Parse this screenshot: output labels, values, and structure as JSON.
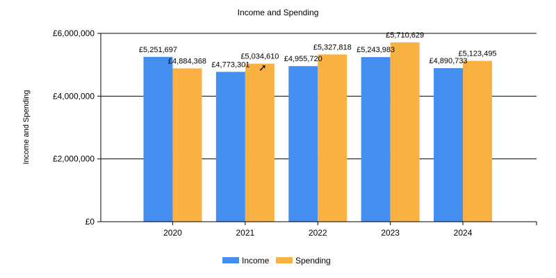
{
  "chart_data": {
    "type": "bar",
    "title": "Income and Spending",
    "xlabel": "",
    "ylabel": "Income and Spending",
    "categories": [
      "2020",
      "2021",
      "2022",
      "2023",
      "2024"
    ],
    "series": [
      {
        "name": "Income",
        "color": "#448EF0",
        "values": [
          5251697,
          4773301,
          4955720,
          5243983,
          4890733
        ],
        "labels": [
          "£5,251,697",
          "£4,773,301",
          "£4,955,720",
          "£5,243,983",
          "£4,890,733"
        ]
      },
      {
        "name": "Spending",
        "color": "#F9B241",
        "values": [
          4884368,
          5034610,
          5327818,
          5710629,
          5123495
        ],
        "labels": [
          "£4,884,368",
          "£5,034,610",
          "£5,327,818",
          "£5,710,629",
          "£5,123,495"
        ]
      }
    ],
    "ylim": [
      0,
      6000000
    ],
    "yticks": [
      0,
      2000000,
      4000000,
      6000000
    ],
    "ytick_labels": [
      "£0",
      "£2,000,000",
      "£4,000,000",
      "£6,000,000"
    ],
    "grid": true,
    "legend_position": "bottom"
  }
}
